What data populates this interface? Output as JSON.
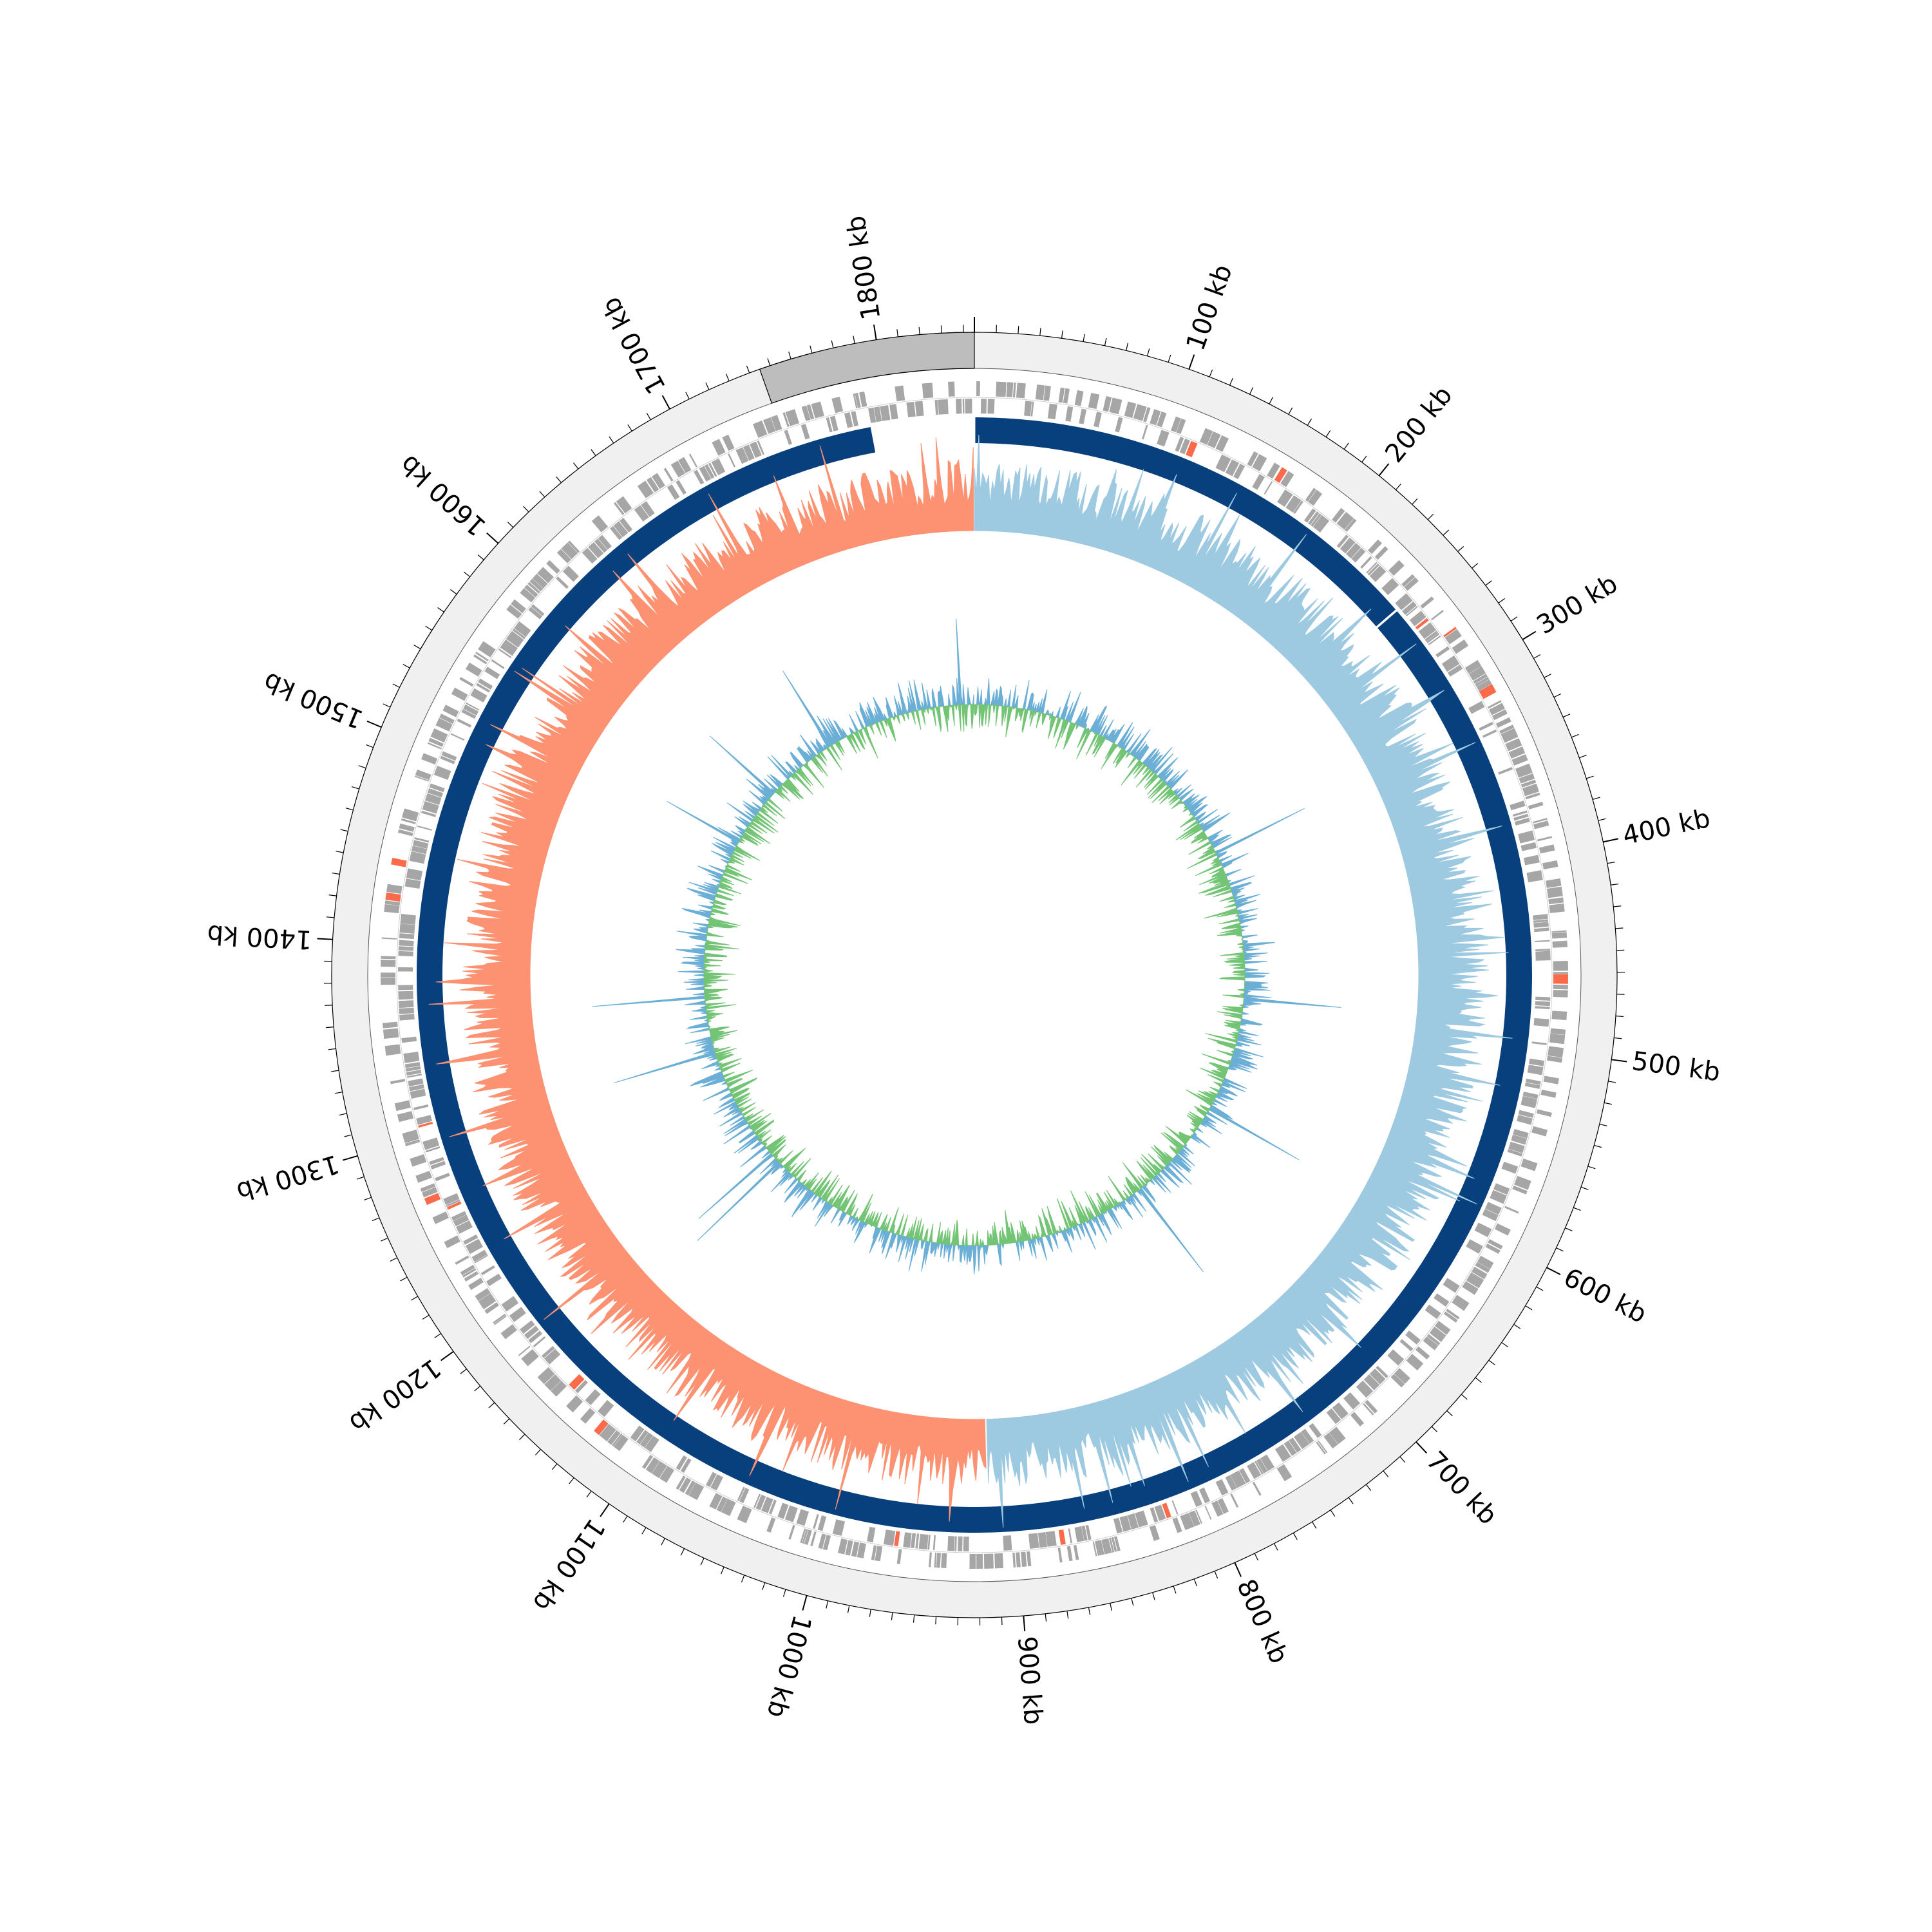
{
  "genome": {
    "length_kb": 1845,
    "origin_offset_kb": 0
  },
  "tick_labels": [
    {
      "kb": 100,
      "label": "100 kb"
    },
    {
      "kb": 200,
      "label": "200 kb"
    },
    {
      "kb": 300,
      "label": "300 kb"
    },
    {
      "kb": 400,
      "label": "400 kb"
    },
    {
      "kb": 500,
      "label": "500 kb"
    },
    {
      "kb": 600,
      "label": "600 kb"
    },
    {
      "kb": 700,
      "label": "700 kb"
    },
    {
      "kb": 800,
      "label": "800 kb"
    },
    {
      "kb": 900,
      "label": "900 kb"
    },
    {
      "kb": 1000,
      "label": "1000 kb"
    },
    {
      "kb": 1100,
      "label": "1100 kb"
    },
    {
      "kb": 1200,
      "label": "1200 kb"
    },
    {
      "kb": 1300,
      "label": "1300 kb"
    },
    {
      "kb": 1400,
      "label": "1400 kb"
    },
    {
      "kb": 1500,
      "label": "1500 kb"
    },
    {
      "kb": 1600,
      "label": "1600 kb"
    },
    {
      "kb": 1700,
      "label": "1700 kb"
    },
    {
      "kb": 1800,
      "label": "1800 kb"
    }
  ],
  "minor_tick_step_kb": 10,
  "highlight_region_kb": [
    1745,
    1845
  ],
  "blue_ring_gap_kb": [
    1790,
    1845
  ],
  "blue_ring_small_gap_kb": 252,
  "gc_skew_switch_kb": [
    0,
    915
  ],
  "colors": {
    "outer_band": "#f0f0f0",
    "highlight": "#bdbdbd",
    "feature": "#a6a6a6",
    "feature_rna": "#fb6a4a",
    "main_ring": "#08407e",
    "skew_positive": "#9ecae1",
    "skew_negative": "#fc9272",
    "content_positive": "#6baed6",
    "content_negative": "#74c476",
    "tick": "#000000"
  }
}
